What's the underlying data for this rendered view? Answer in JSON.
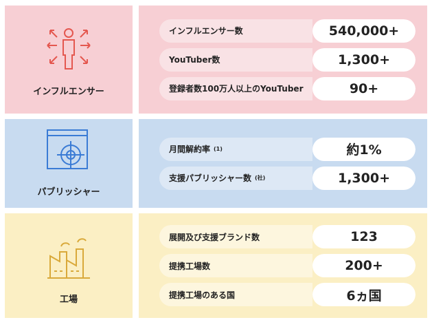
{
  "sections": [
    {
      "label": "インフルエンサー",
      "rows": [
        {
          "label": "インフルエンサー数",
          "value": "540,000+"
        },
        {
          "label": "YouTuber数",
          "value": "1,300+"
        },
        {
          "label": "登録者数100万人以上のYouTuber",
          "value": "90+"
        }
      ]
    },
    {
      "label": "パブリッシャー",
      "rows": [
        {
          "label": "月間解約率",
          "note": "(1)",
          "value": "約1%"
        },
        {
          "label": "支援パブリッシャー数",
          "note": "(社)",
          "value": "1,300+"
        }
      ]
    },
    {
      "label": "工場",
      "rows": [
        {
          "label": "展開及び支援ブランド数",
          "value": "123"
        },
        {
          "label": "提携工場数",
          "value": "200+"
        },
        {
          "label": "提携工場のある国",
          "value": "6ヵ国"
        }
      ]
    }
  ]
}
